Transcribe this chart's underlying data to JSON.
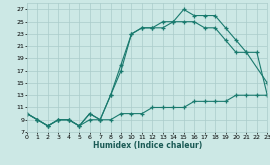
{
  "xlabel": "Humidex (Indice chaleur)",
  "background_color": "#cce8e5",
  "line_color": "#1a7a6e",
  "grid_color": "#aaccca",
  "xlim": [
    0,
    23
  ],
  "ylim": [
    7,
    28
  ],
  "xticks": [
    0,
    1,
    2,
    3,
    4,
    5,
    6,
    7,
    8,
    9,
    10,
    11,
    12,
    13,
    14,
    15,
    16,
    17,
    18,
    19,
    20,
    21,
    22,
    23
  ],
  "yticks": [
    7,
    9,
    11,
    13,
    15,
    17,
    19,
    21,
    23,
    25,
    27
  ],
  "series": [
    {
      "x": [
        0,
        1,
        2,
        3,
        4,
        5,
        6,
        7,
        8,
        9,
        10,
        11,
        12,
        13,
        14,
        15,
        16,
        17,
        18,
        19,
        20,
        21,
        23
      ],
      "y": [
        10,
        9,
        8,
        9,
        9,
        8,
        10,
        9,
        13,
        18,
        23,
        24,
        24,
        24,
        25,
        27,
        26,
        26,
        26,
        24,
        22,
        20,
        15
      ]
    },
    {
      "x": [
        0,
        1,
        2,
        3,
        4,
        5,
        6,
        7,
        8,
        9,
        10,
        11,
        12,
        13,
        14,
        15,
        16,
        17,
        18,
        19,
        20,
        21,
        22,
        23
      ],
      "y": [
        10,
        9,
        8,
        9,
        9,
        8,
        10,
        9,
        13,
        17,
        23,
        24,
        24,
        25,
        25,
        25,
        25,
        24,
        24,
        22,
        20,
        20,
        20,
        13
      ]
    },
    {
      "x": [
        0,
        1,
        2,
        3,
        4,
        5,
        6,
        7,
        8,
        9,
        10,
        11,
        12,
        13,
        14,
        15,
        16,
        17,
        18,
        19,
        20,
        21,
        22,
        23
      ],
      "y": [
        10,
        9,
        8,
        9,
        9,
        8,
        9,
        9,
        9,
        10,
        10,
        10,
        11,
        11,
        11,
        11,
        12,
        12,
        12,
        12,
        13,
        13,
        13,
        13
      ]
    }
  ]
}
